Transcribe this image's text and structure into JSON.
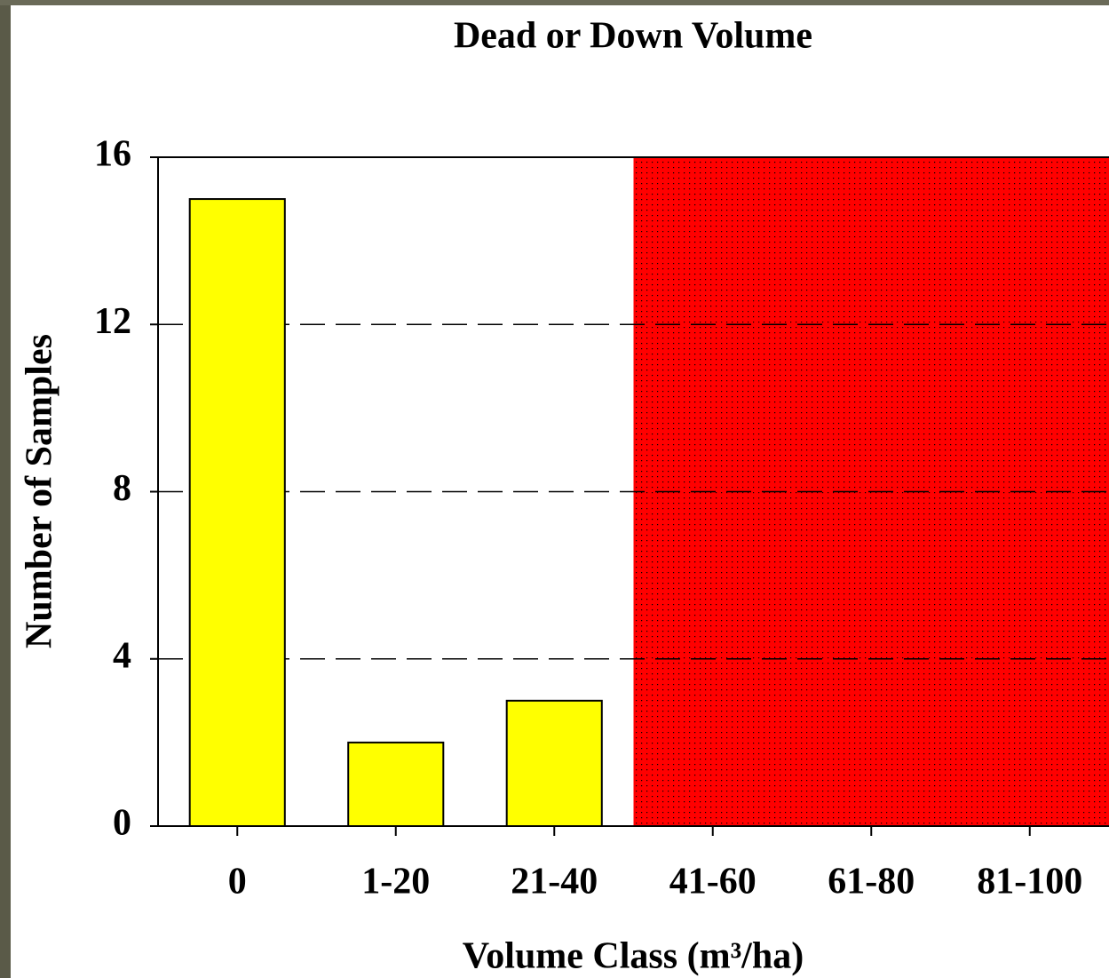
{
  "chart_data": {
    "type": "bar",
    "title": "Dead or Down Volume",
    "x_label": "Volume Class (m³/ha)",
    "y_label": "Number of Samples",
    "categories": [
      "0",
      "1-20",
      "21-40",
      "41-60",
      "61-80",
      "81-100"
    ],
    "values": [
      15,
      2,
      3,
      0,
      0,
      0
    ],
    "color": "#ffff00",
    "ylim": [
      0,
      16
    ],
    "yticks": [
      0,
      4,
      8,
      12,
      16
    ],
    "grid": true,
    "shaded_from": "41-60",
    "shaded_color": "#ff0000"
  }
}
